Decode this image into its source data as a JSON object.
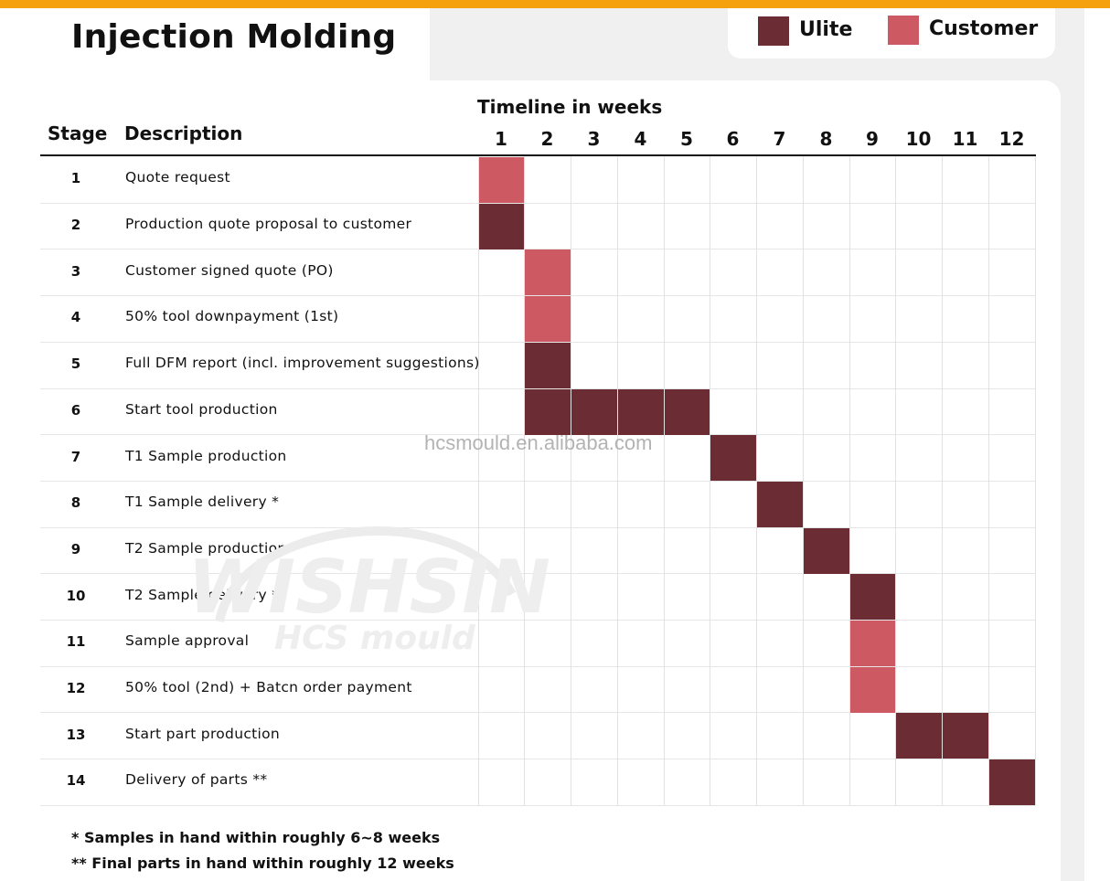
{
  "title": "Injection Molding",
  "colors": {
    "ulite": "#6b2d33",
    "customer": "#cd5a63",
    "accent_bar": "#f5a10d"
  },
  "legend": [
    {
      "label": "Ulite",
      "color": "#6b2d33"
    },
    {
      "label": "Customer",
      "color": "#cd5a63"
    }
  ],
  "headers": {
    "stage": "Stage",
    "description": "Description",
    "timeline": "Timeline in weeks"
  },
  "chart_data": {
    "type": "gantt",
    "title": "Injection Molding",
    "x_label": "Timeline in weeks",
    "weeks": [
      "1",
      "2",
      "3",
      "4",
      "5",
      "6",
      "7",
      "8",
      "9",
      "10",
      "11",
      "12"
    ],
    "series": [
      {
        "name": "Ulite",
        "color": "#6b2d33"
      },
      {
        "name": "Customer",
        "color": "#cd5a63"
      }
    ],
    "tasks": [
      {
        "stage": "1",
        "description": "Quote request",
        "party": "Customer",
        "weeks": [
          1
        ]
      },
      {
        "stage": "2",
        "description": "Production quote proposal to customer",
        "party": "Ulite",
        "weeks": [
          1
        ]
      },
      {
        "stage": "3",
        "description": "Customer signed quote (PO)",
        "party": "Customer",
        "weeks": [
          2
        ]
      },
      {
        "stage": "4",
        "description": "50% tool downpayment (1st)",
        "party": "Customer",
        "weeks": [
          2
        ]
      },
      {
        "stage": "5",
        "description": "Full DFM report (incl. improvement suggestions)",
        "party": "Ulite",
        "weeks": [
          2
        ]
      },
      {
        "stage": "6",
        "description": "Start tool production",
        "party": "Ulite",
        "weeks": [
          2,
          3,
          4,
          5
        ]
      },
      {
        "stage": "7",
        "description": "T1 Sample production",
        "party": "Ulite",
        "weeks": [
          6
        ]
      },
      {
        "stage": "8",
        "description": "T1 Sample delivery *",
        "party": "Ulite",
        "weeks": [
          7
        ]
      },
      {
        "stage": "9",
        "description": "T2 Sample production",
        "party": "Ulite",
        "weeks": [
          8
        ]
      },
      {
        "stage": "10",
        "description": "T2 Sample delivery *",
        "party": "Ulite",
        "weeks": [
          9
        ]
      },
      {
        "stage": "11",
        "description": "Sample approval",
        "party": "Customer",
        "weeks": [
          9
        ]
      },
      {
        "stage": "12",
        "description": "50% tool (2nd) + Batcn order payment",
        "party": "Customer",
        "weeks": [
          9
        ]
      },
      {
        "stage": "13",
        "description": "Start part production",
        "party": "Ulite",
        "weeks": [
          10,
          11
        ]
      },
      {
        "stage": "14",
        "description": "Delivery of parts **",
        "party": "Ulite",
        "weeks": [
          12
        ]
      }
    ]
  },
  "footnotes": [
    "* Samples in hand within roughly 6~8 weeks",
    "** Final parts in hand within roughly 12 weeks"
  ],
  "watermark": {
    "url": "hcsmould.en.alibaba.com",
    "brand": "WISHSINO",
    "sub": "HCS mould"
  }
}
